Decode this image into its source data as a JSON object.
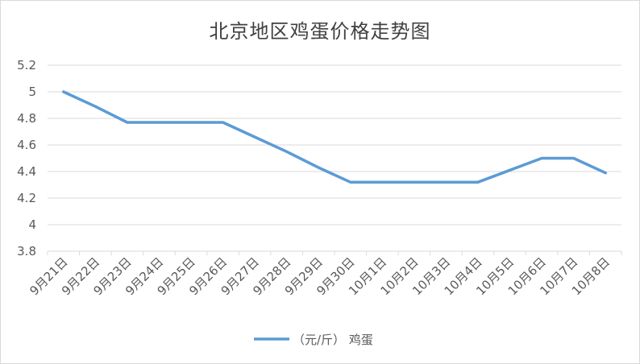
{
  "chart_data": {
    "type": "line",
    "title": "北京地区鸡蛋价格走势图",
    "categories": [
      "9月21日",
      "9月22日",
      "9月23日",
      "9月24日",
      "9月25日",
      "9月26日",
      "9月27日",
      "9月28日",
      "9月29日",
      "9月30日",
      "10月1日",
      "10月2日",
      "10月3日",
      "10月4日",
      "10月5日",
      "10月6日",
      "10月7日",
      "10月8日"
    ],
    "series": [
      {
        "name": "（元/斤） 鸡蛋",
        "values": [
          5.0,
          4.89,
          4.77,
          4.77,
          4.77,
          4.77,
          4.66,
          4.55,
          4.43,
          4.32,
          4.32,
          4.32,
          4.32,
          4.32,
          4.41,
          4.5,
          4.5,
          4.39
        ],
        "color": "#5b9bd5"
      }
    ],
    "yticks": [
      "3.8",
      "4",
      "4.2",
      "4.4",
      "4.6",
      "4.8",
      "5",
      "5.2"
    ],
    "ylim": [
      3.8,
      5.2
    ],
    "grid": true,
    "legend_position": "bottom"
  }
}
